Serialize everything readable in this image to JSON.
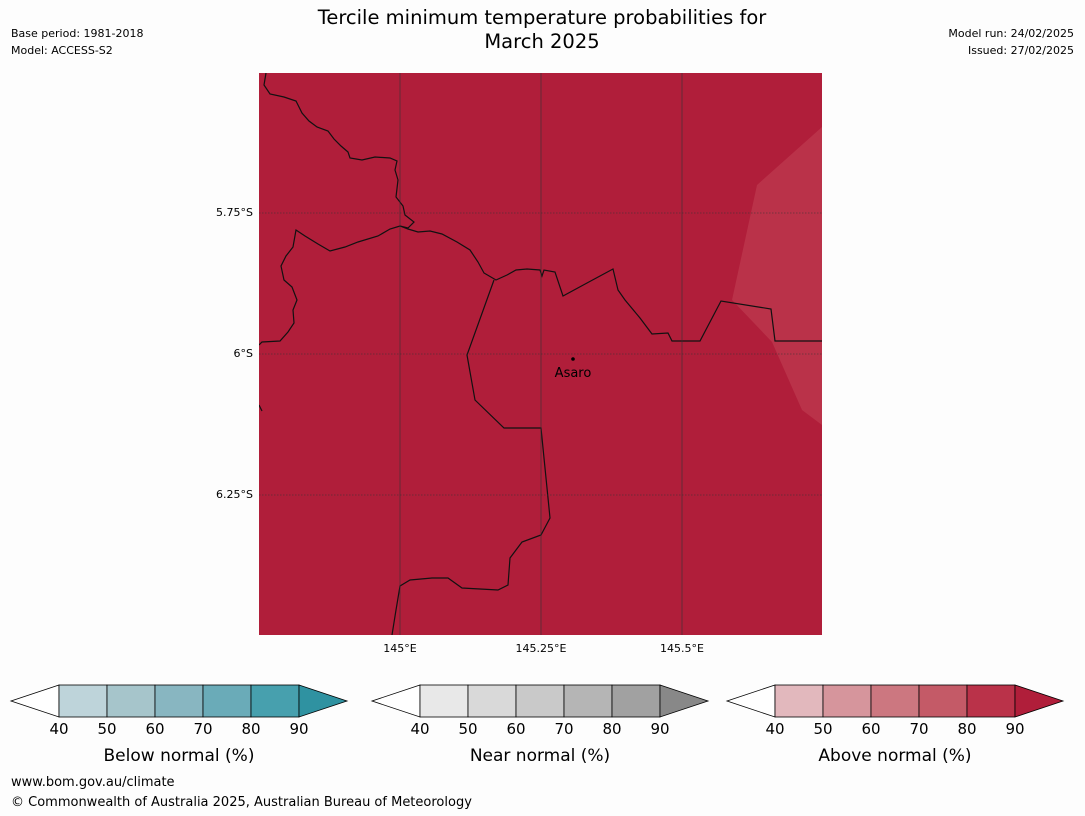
{
  "header": {
    "base_period": "Base period: 1981-2018",
    "model": "Model: ACCESS-S2",
    "title_line1": "Tercile minimum temperature probabilities for",
    "title_line2": "March 2025",
    "model_run": "Model run: 24/02/2025",
    "issued": "Issued: 27/02/2025"
  },
  "map": {
    "fill_color": "#b01e3a",
    "highlight_color": "#ba3249",
    "latitude_labels": [
      "5.75°S",
      "6°S",
      "6.25°S"
    ],
    "longitude_labels": [
      "145°E",
      "145.25°E",
      "145.5°E"
    ],
    "place": "Asaro"
  },
  "legends": [
    {
      "title": "Below normal (%)",
      "ticks": [
        "40",
        "50",
        "60",
        "70",
        "80",
        "90"
      ],
      "colors": [
        "#bed4da",
        "#a6c5cb",
        "#88b6c1",
        "#6aabb8",
        "#47a0ae",
        "#2f92a1"
      ]
    },
    {
      "title": "Near normal (%)",
      "ticks": [
        "40",
        "50",
        "60",
        "70",
        "80",
        "90"
      ],
      "colors": [
        "#e8e8e8",
        "#d9d9d9",
        "#c9c9c9",
        "#b5b5b5",
        "#a1a1a1",
        "#888888"
      ]
    },
    {
      "title": "Above normal (%)",
      "ticks": [
        "40",
        "50",
        "60",
        "70",
        "80",
        "90"
      ],
      "colors": [
        "#e2b8bd",
        "#d6959c",
        "#cc7780",
        "#c45a67",
        "#ba3249",
        "#b01e3a"
      ]
    }
  ],
  "footer": {
    "website": "www.bom.gov.au/climate",
    "copyright": "© Commonwealth of Australia 2025, Australian Bureau of Meteorology"
  }
}
